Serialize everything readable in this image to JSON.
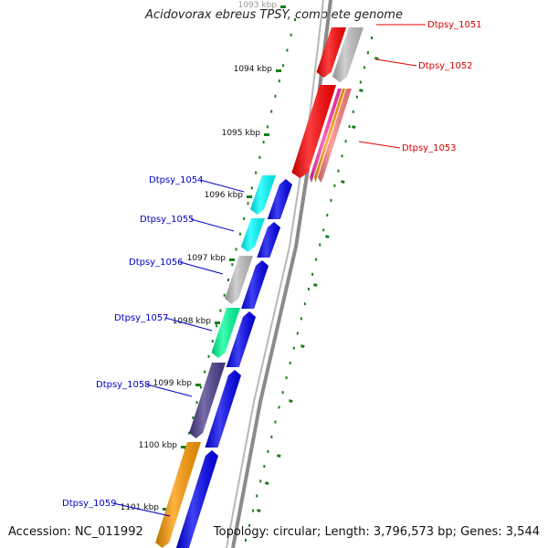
{
  "title": "Acidovorax ebreus TPSY, complete genome",
  "accession_label": "Accession: NC_011992",
  "summary": "Topology: circular; Length: 3,796,573 bp; Genes: 3,544",
  "colors": {
    "backbone": "#8a8a8a",
    "tick": "#1a7f1a",
    "forward_label": "#d40000",
    "reverse_label": "#0000c8",
    "blue_track": "#0000f0"
  },
  "kbp_ticks": [
    "1093 kbp",
    "1094 kbp",
    "1095 kbp",
    "1096 kbp",
    "1097 kbp",
    "1098 kbp",
    "1099 kbp",
    "1100 kbp",
    "1101 kbp"
  ],
  "forward_genes": [
    {
      "label": "Dtpsy_1051",
      "cog_color": "#ff0000"
    },
    {
      "label": "Dtpsy_1052",
      "cog_color": "#c0c0c0"
    },
    {
      "label": "Dtpsy_1053",
      "cog_color": "#ff0000"
    }
  ],
  "reverse_genes": [
    {
      "label": "Dtpsy_1054",
      "cog_color": "#00ffff"
    },
    {
      "label": "Dtpsy_1055",
      "cog_color": "#00ffff"
    },
    {
      "label": "Dtpsy_1056",
      "cog_color": "#c0c0c0"
    },
    {
      "label": "Dtpsy_1057",
      "cog_color": "#00ff99"
    },
    {
      "label": "Dtpsy_1058",
      "cog_color": "#4b3c8c"
    },
    {
      "label": "Dtpsy_1059",
      "cog_color": "#ff9900"
    }
  ]
}
